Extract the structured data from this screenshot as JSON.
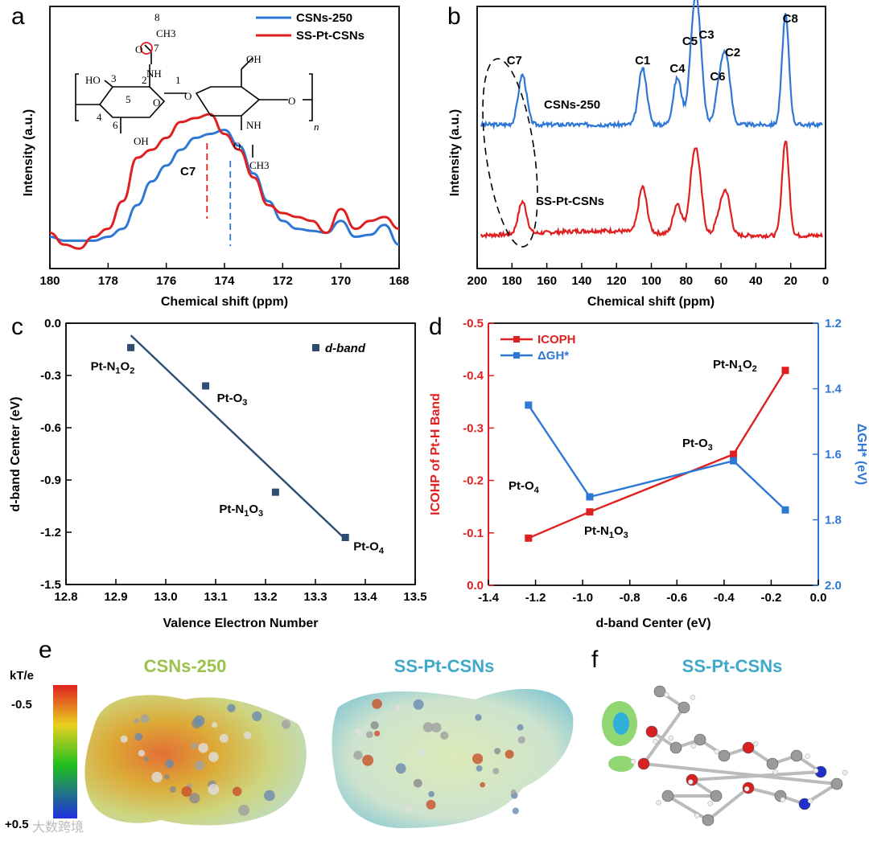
{
  "colors": {
    "blue": "#2F77D4",
    "red": "#E02020",
    "navy": "#2E4D70",
    "ef_title": "#3FA9C9",
    "e_title_left": "#9CC24E"
  },
  "panels": {
    "a": "a",
    "b": "b",
    "c": "c",
    "d": "d",
    "e": "e",
    "f": "f"
  },
  "chart_data": [
    {
      "id": "a",
      "type": "line",
      "xlabel": "Chemical shift (ppm)",
      "ylabel": "Intensity (a.u.)",
      "xlim": [
        180,
        168
      ],
      "xticks": [
        180,
        178,
        176,
        174,
        172,
        170,
        168
      ],
      "legend": [
        "CSNs-250",
        "SS-Pt-CSNs"
      ],
      "annotation": "C7",
      "peaks": {
        "SS-Pt-CSNs": 174.6,
        "CSNs-250": 173.8
      },
      "series": [
        {
          "name": "CSNs-250",
          "color": "blue",
          "x": [
            180,
            179.5,
            179,
            178.5,
            178,
            177.5,
            177,
            176.5,
            176,
            175.5,
            175,
            174.5,
            174,
            173.5,
            173,
            172.5,
            172,
            171.5,
            171,
            170.5,
            170,
            169.5,
            169,
            168.5,
            168
          ],
          "y": [
            0.12,
            0.1,
            0.1,
            0.1,
            0.12,
            0.16,
            0.28,
            0.4,
            0.48,
            0.56,
            0.62,
            0.64,
            0.66,
            0.58,
            0.44,
            0.3,
            0.2,
            0.16,
            0.15,
            0.14,
            0.2,
            0.12,
            0.13,
            0.18,
            0.08
          ]
        },
        {
          "name": "SS-Pt-CSNs",
          "color": "red",
          "x": [
            180,
            179.5,
            179,
            178.5,
            178,
            177.5,
            177,
            176.5,
            176,
            175.5,
            175,
            174.5,
            174,
            173.5,
            173,
            172.5,
            172,
            171.5,
            171,
            170.5,
            170,
            169.5,
            169,
            168.5,
            168
          ],
          "y": [
            0.14,
            0.08,
            0.06,
            0.12,
            0.16,
            0.3,
            0.52,
            0.56,
            0.62,
            0.7,
            0.72,
            0.74,
            0.64,
            0.56,
            0.42,
            0.28,
            0.24,
            0.22,
            0.2,
            0.14,
            0.26,
            0.16,
            0.2,
            0.22,
            0.16
          ]
        }
      ],
      "structure_labels": {
        "c8": "8",
        "ch3": "CH3",
        "o": "O",
        "c7": "7",
        "nh": "NH",
        "ho": "HO",
        "oh": "OH",
        "n": "n",
        "o_ring": "O",
        "ch3_b": "CH3",
        "nh_b": "NH",
        "o_b": "O",
        "oh_b": "OH",
        "ring_nums": [
          "1",
          "2",
          "3",
          "4",
          "5",
          "6"
        ]
      }
    },
    {
      "id": "b",
      "type": "line",
      "xlabel": "Chemical shift (ppm)",
      "ylabel": "Intensity (a.u.)",
      "xlim": [
        200,
        0
      ],
      "xticks": [
        200,
        180,
        160,
        140,
        120,
        100,
        80,
        60,
        40,
        20,
        0
      ],
      "peak_labels": [
        {
          "label": "C7",
          "ppm": 174
        },
        {
          "label": "C1",
          "ppm": 105
        },
        {
          "label": "C4",
          "ppm": 85
        },
        {
          "label": "C5",
          "ppm": 76
        },
        {
          "label": "C3",
          "ppm": 73
        },
        {
          "label": "C6",
          "ppm": 61
        },
        {
          "label": "C2",
          "ppm": 57
        },
        {
          "label": "C8",
          "ppm": 23
        }
      ],
      "series": [
        {
          "name": "CSNs-250",
          "color": "blue",
          "baseline": 0.0,
          "peaks": [
            {
              "ppm": 174,
              "h": 0.62
            },
            {
              "ppm": 105,
              "h": 0.7
            },
            {
              "ppm": 85,
              "h": 0.58
            },
            {
              "ppm": 76,
              "h": 0.96
            },
            {
              "ppm": 73,
              "h": 1.0
            },
            {
              "ppm": 61,
              "h": 0.44
            },
            {
              "ppm": 57,
              "h": 0.78
            },
            {
              "ppm": 23,
              "h": 1.36
            }
          ]
        },
        {
          "name": "SS-Pt-CSNs",
          "color": "red",
          "baseline": 0.0,
          "peaks": [
            {
              "ppm": 174,
              "h": 0.4
            },
            {
              "ppm": 105,
              "h": 0.56
            },
            {
              "ppm": 85,
              "h": 0.38
            },
            {
              "ppm": 76,
              "h": 0.7
            },
            {
              "ppm": 73,
              "h": 0.62
            },
            {
              "ppm": 61,
              "h": 0.22
            },
            {
              "ppm": 57,
              "h": 0.5
            },
            {
              "ppm": 23,
              "h": 1.18
            }
          ]
        }
      ]
    },
    {
      "id": "c",
      "type": "scatter",
      "xlabel": "Valence Electron Number",
      "ylabel": "d-band Center (eV)",
      "xlim": [
        12.8,
        13.5
      ],
      "ylim": [
        -1.5,
        0.0
      ],
      "xticks": [
        "12.8",
        "12.9",
        "13.0",
        "13.1",
        "13.2",
        "13.3",
        "13.4",
        "13.5"
      ],
      "yticks": [
        "0.0",
        "-0.3",
        "-0.6",
        "-0.9",
        "-1.2",
        "-1.5"
      ],
      "legend": "d-band",
      "points": [
        {
          "label": "Pt-N1O2",
          "x": 12.93,
          "y": -0.14
        },
        {
          "label": "Pt-O3",
          "x": 13.08,
          "y": -0.36
        },
        {
          "label": "Pt-N1O3",
          "x": 13.22,
          "y": -0.97
        },
        {
          "label": "Pt-O4",
          "x": 13.36,
          "y": -1.23
        }
      ],
      "fit": {
        "x": [
          12.93,
          13.36
        ],
        "y": [
          -0.07,
          -1.24
        ]
      }
    },
    {
      "id": "d",
      "type": "line",
      "xlabel": "d-band Center (eV)",
      "ylabel_left": "ICOHP of Pt-H Band",
      "ylabel_right": "ΔGH* (eV)",
      "xlim": [
        -1.4,
        0.0
      ],
      "ylim_left": [
        0.0,
        -0.5
      ],
      "ylim_right": [
        2.0,
        1.2
      ],
      "xticks": [
        "-1.4",
        "-1.2",
        "-1.0",
        "-0.8",
        "-0.6",
        "-0.4",
        "-0.2",
        "0.0"
      ],
      "yticks_left": [
        "-0.5",
        "-0.4",
        "-0.3",
        "-0.2",
        "-0.1",
        "0.0"
      ],
      "yticks_right": [
        "1.2",
        "1.4",
        "1.6",
        "1.8",
        "2.0"
      ],
      "legend": [
        "ICOPH",
        "ΔGH*"
      ],
      "series": [
        {
          "name": "ICOPH",
          "axis": "left",
          "color": "red",
          "x": [
            -1.23,
            -0.97,
            -0.36,
            -0.14
          ],
          "y": [
            -0.09,
            -0.14,
            -0.25,
            -0.41
          ]
        },
        {
          "name": "ΔGH*",
          "axis": "right",
          "color": "blue",
          "x": [
            -1.23,
            -0.97,
            -0.36,
            -0.14
          ],
          "y": [
            1.45,
            1.73,
            1.62,
            1.77
          ]
        }
      ],
      "point_labels": [
        "Pt-O4",
        "Pt-N1O3",
        "Pt-O3",
        "Pt-N1O2"
      ]
    }
  ],
  "panel_e": {
    "unit": "kT/e",
    "top": "-0.5",
    "bottom": "+0.5",
    "left_title": "CSNs-250",
    "right_title": "SS-Pt-CSNs"
  },
  "panel_f": {
    "title": "SS-Pt-CSNs"
  },
  "watermark": "大数跨境"
}
